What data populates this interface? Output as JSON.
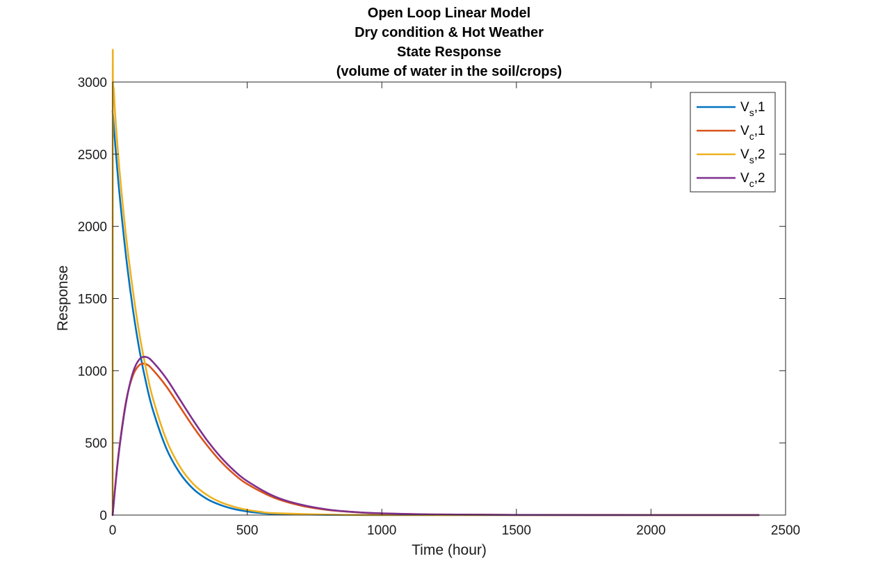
{
  "chart_data": {
    "type": "line",
    "title": [
      "Open Loop Linear Model",
      "Dry condition & Hot Weather",
      "State Response",
      "(volume of water in the soil/crops)"
    ],
    "xlabel": "Time (hour)",
    "ylabel": "Response",
    "xlim": [
      0,
      2500
    ],
    "ylim": [
      0,
      3000
    ],
    "xticks": [
      0,
      500,
      1000,
      1500,
      2000,
      2500
    ],
    "yticks": [
      0,
      500,
      1000,
      1500,
      2000,
      2500,
      3000
    ],
    "xtick_labels": [
      "0",
      "500",
      "1000",
      "1500",
      "2000",
      "2500"
    ],
    "ytick_labels": [
      "0",
      "500",
      "1000",
      "1500",
      "2000",
      "2500",
      "3000"
    ],
    "legend_position": "top-right",
    "series": [
      {
        "name": "Vs,1",
        "legend_main": "V",
        "legend_sub": "s",
        "legend_suffix": ",1",
        "color": "#0072BD",
        "x": [
          0,
          10,
          25,
          50,
          75,
          100,
          125,
          150,
          200,
          250,
          300,
          350,
          400,
          450,
          500,
          550,
          600,
          800,
          1000,
          1500,
          2000,
          2400
        ],
        "y": [
          2800,
          2560,
          2235,
          1790,
          1430,
          1140,
          910,
          725,
          460,
          290,
          180,
          112,
          70,
          42,
          25,
          14,
          8,
          2,
          0,
          0,
          0,
          0
        ]
      },
      {
        "name": "Vc,1",
        "legend_main": "V",
        "legend_sub": "c",
        "legend_suffix": ",1",
        "color": "#D95319",
        "x": [
          0,
          10,
          25,
          50,
          75,
          100,
          125,
          150,
          200,
          250,
          300,
          350,
          400,
          450,
          500,
          600,
          700,
          800,
          900,
          1000,
          1200,
          1500,
          2000,
          2400
        ],
        "y": [
          0,
          205,
          470,
          790,
          965,
          1040,
          1045,
          1005,
          890,
          750,
          610,
          485,
          375,
          285,
          215,
          120,
          65,
          35,
          20,
          11,
          4,
          1,
          0,
          0
        ]
      },
      {
        "name": "Vs,2",
        "legend_main": "V",
        "legend_sub": "s",
        "legend_suffix": ",2",
        "color": "#EDB120",
        "x": [
          0,
          0.5,
          1,
          2,
          5,
          10,
          25,
          50,
          75,
          100,
          125,
          150,
          200,
          250,
          300,
          350,
          400,
          450,
          500,
          550,
          600,
          800,
          1000,
          1500,
          2000,
          2400
        ],
        "y": [
          0,
          3000,
          3000,
          2980,
          2930,
          2760,
          2400,
          1930,
          1560,
          1250,
          1005,
          805,
          520,
          335,
          215,
          140,
          90,
          58,
          36,
          22,
          13,
          3,
          0,
          0,
          0,
          0
        ]
      },
      {
        "name": "Vc,2",
        "legend_main": "V",
        "legend_sub": "c",
        "legend_suffix": ",2",
        "color": "#7E2F8E",
        "x": [
          0,
          10,
          25,
          50,
          75,
          100,
          125,
          150,
          200,
          250,
          300,
          350,
          400,
          450,
          500,
          600,
          700,
          800,
          900,
          1000,
          1200,
          1500,
          2000,
          2400
        ],
        "y": [
          0,
          200,
          460,
          780,
          985,
          1080,
          1095,
          1060,
          945,
          800,
          655,
          520,
          405,
          310,
          235,
          130,
          72,
          38,
          21,
          12,
          4,
          1,
          0,
          0
        ]
      }
    ]
  }
}
